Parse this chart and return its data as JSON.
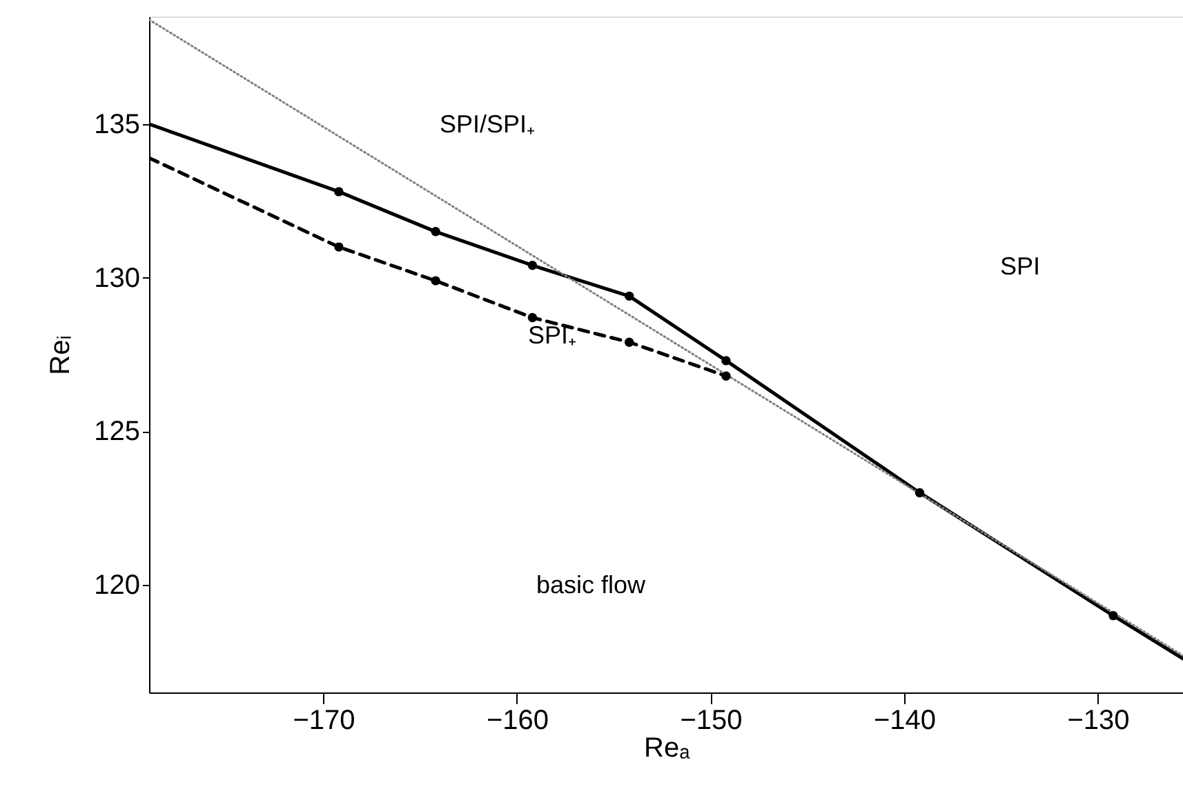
{
  "chart_data": {
    "type": "line",
    "xlabel": "Reₐ",
    "ylabel": "Reᵢ",
    "xlim": [
      -179,
      -125.6
    ],
    "ylim": [
      116.5,
      138.5
    ],
    "xticks": [
      -170,
      -160,
      -150,
      -140,
      -130
    ],
    "yticks": [
      120,
      125,
      130,
      135
    ],
    "grid": false,
    "series": [
      {
        "color": "#000000",
        "line_style": "solid",
        "marker": "none",
        "x": [
          -179,
          -169.2,
          -164.2,
          -159.2,
          -154.2,
          -149.2,
          -139.2,
          -129.2,
          -125.6
        ],
        "values": [
          135.0,
          132.8,
          131.5,
          130.4,
          129.4,
          127.3,
          123.0,
          119.0,
          117.6
        ]
      },
      {
        "color": "#000000",
        "line_style": "dashed",
        "marker": "none",
        "x": [
          -179,
          -169.2,
          -164.2,
          -159.2,
          -154.2,
          -149.2
        ],
        "values": [
          133.9,
          131.0,
          129.9,
          128.7,
          127.9,
          126.8
        ]
      },
      {
        "color": "#808080",
        "line_style": "dotted",
        "marker": "none",
        "x": [
          -179,
          -125.6
        ],
        "values": [
          138.4,
          117.7
        ]
      },
      {
        "type": "scatter",
        "color": "#000000",
        "marker": "circle",
        "x": [
          -169.2,
          -164.2,
          -159.2,
          -154.2,
          -149.2,
          -139.2,
          -129.2
        ],
        "values": [
          132.8,
          131.5,
          130.4,
          129.4,
          127.3,
          123.0,
          119.0
        ]
      },
      {
        "type": "scatter",
        "color": "#000000",
        "marker": "circle",
        "x": [
          -169.2,
          -164.2,
          -159.2,
          -154.2,
          -149.2
        ],
        "values": [
          131.0,
          129.9,
          128.7,
          127.9,
          126.8
        ]
      }
    ],
    "annotations": [
      "SPI/SPI₊",
      "SPI",
      "SPI₊",
      "basic flow"
    ]
  }
}
